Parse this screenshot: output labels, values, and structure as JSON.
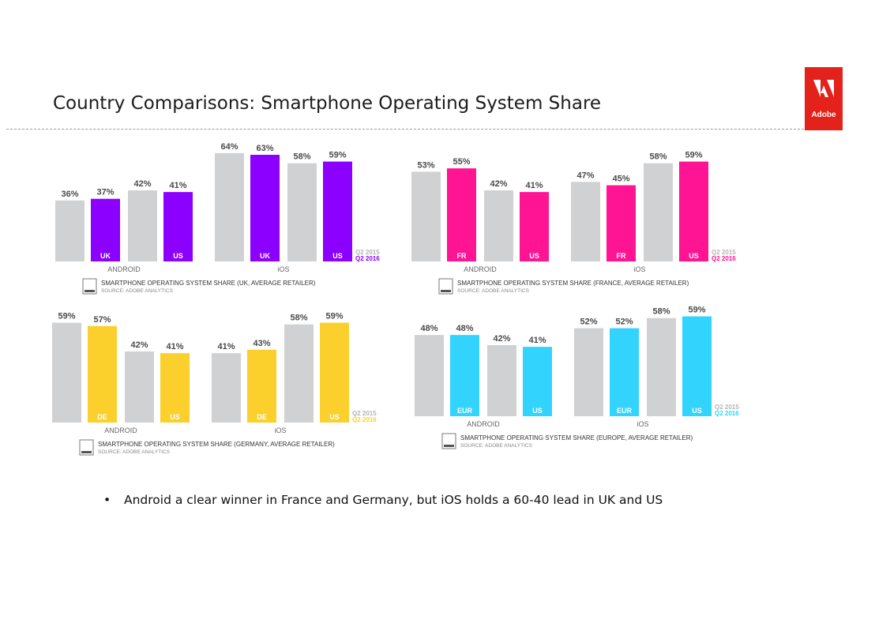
{
  "slide": {
    "title": "Country Comparisons: Smartphone Operating System Share",
    "logo_text": "Adobe",
    "bullet_marker": "•",
    "bullets": [
      "Android a clear winner in France and Germany, but iOS holds a 60-40 lead in UK and US"
    ]
  },
  "colors": {
    "baseline": "#d0d1d2",
    "brand_red": "#e3231b"
  },
  "chart_data": [
    {
      "type": "bar",
      "title": "SMARTPHONE OPERATING SYSTEM SHARE (UK, AVERAGE RETAILER)",
      "source": "SOURCE: ADOBE ANALYTICS",
      "groups": [
        "ANDROID",
        "iOS"
      ],
      "categories": [
        "UK",
        "US",
        "UK",
        "US"
      ],
      "legend": [
        "Q2 2015",
        "Q2 2016"
      ],
      "legend_placement": "bottom-right",
      "accent_color": "#8b00ff",
      "series": [
        {
          "name": "Q2 2015",
          "values": [
            36,
            42,
            64,
            58
          ]
        },
        {
          "name": "Q2 2016",
          "values": [
            37,
            41,
            63,
            59
          ]
        }
      ],
      "ylim": [
        0,
        70
      ]
    },
    {
      "type": "bar",
      "title": "SMARTPHONE OPERATING SYSTEM SHARE (FRANCE, AVERAGE RETAILER)",
      "source": "SOURCE: ADOBE ANALYTICS",
      "groups": [
        "ANDROID",
        "iOS"
      ],
      "categories": [
        "FR",
        "US",
        "FR",
        "US"
      ],
      "legend": [
        "Q2 2015",
        "Q2 2016"
      ],
      "legend_placement": "bottom-right",
      "accent_color": "#ff1493",
      "series": [
        {
          "name": "Q2 2015",
          "values": [
            53,
            42,
            47,
            58
          ]
        },
        {
          "name": "Q2 2016",
          "values": [
            55,
            41,
            45,
            59
          ]
        }
      ],
      "ylim": [
        0,
        70
      ]
    },
    {
      "type": "bar",
      "title": "SMARTPHONE OPERATING SYSTEM SHARE (GERMANY, AVERAGE RETAILER)",
      "source": "SOURCE: ADOBE ANALYTICS",
      "groups": [
        "ANDROID",
        "iOS"
      ],
      "categories": [
        "DE",
        "US",
        "DE",
        "US"
      ],
      "legend": [
        "Q2 2015",
        "Q2 2016"
      ],
      "legend_placement": "bottom-right",
      "accent_color": "#fcd02c",
      "series": [
        {
          "name": "Q2 2015",
          "values": [
            59,
            42,
            41,
            58
          ]
        },
        {
          "name": "Q2 2016",
          "values": [
            57,
            41,
            43,
            59
          ]
        }
      ],
      "ylim": [
        0,
        70
      ]
    },
    {
      "type": "bar",
      "title": "SMARTPHONE OPERATING SYSTEM SHARE (EUROPE, AVERAGE RETAILER)",
      "source": "SOURCE: ADOBE ANALYTICS",
      "groups": [
        "ANDROID",
        "iOS"
      ],
      "categories": [
        "EUR",
        "US",
        "EUR",
        "US"
      ],
      "legend": [
        "Q2 2015",
        "Q2 2016"
      ],
      "legend_placement": "bottom-right",
      "accent_color": "#32d4fd",
      "series": [
        {
          "name": "Q2 2015",
          "values": [
            48,
            42,
            52,
            58
          ]
        },
        {
          "name": "Q2 2016",
          "values": [
            48,
            41,
            52,
            59
          ]
        }
      ],
      "ylim": [
        0,
        70
      ]
    }
  ]
}
